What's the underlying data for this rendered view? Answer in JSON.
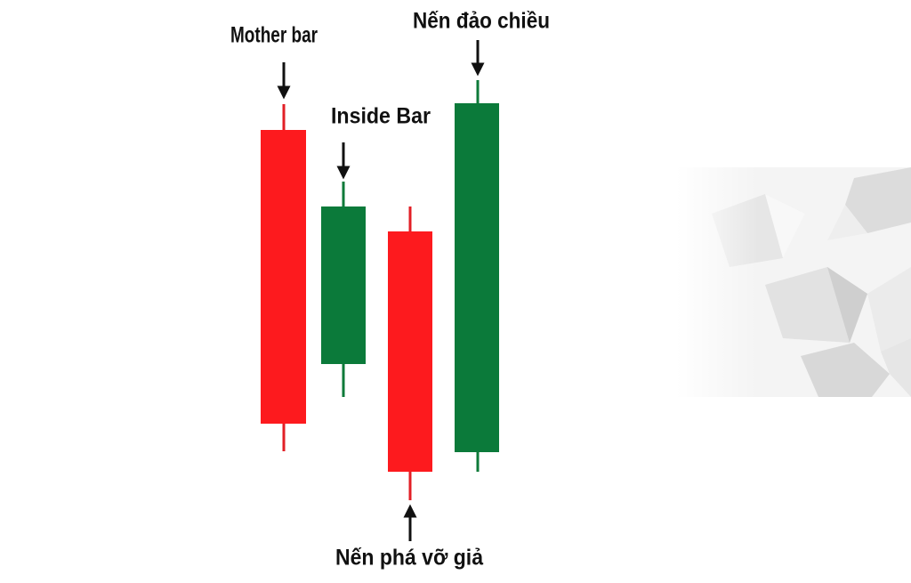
{
  "annotations": [
    "Mother bar",
    "Inside Bar",
    "Nến phá vỡ giả",
    "Nến đảo chiều"
  ]
}
